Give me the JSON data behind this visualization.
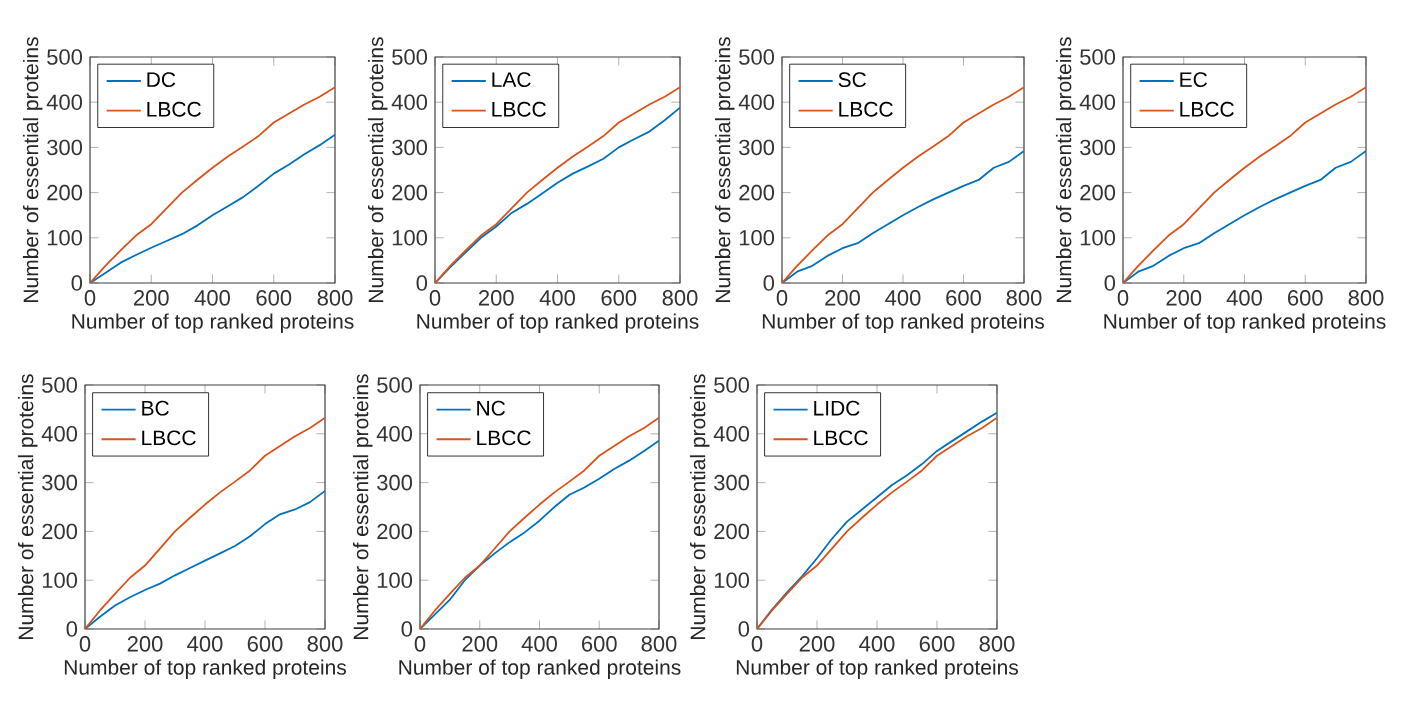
{
  "chart_data": [
    {
      "type": "line",
      "xlabel": "Number of top ranked proteins",
      "ylabel": "Number of essential proteins",
      "x": [
        0,
        50,
        100,
        150,
        200,
        250,
        300,
        350,
        400,
        450,
        500,
        550,
        600,
        650,
        700,
        750,
        800
      ],
      "xlim": [
        0,
        800
      ],
      "ylim": [
        0,
        500
      ],
      "xticks": [
        0,
        200,
        400,
        600,
        800
      ],
      "yticks": [
        0,
        100,
        200,
        300,
        400,
        500
      ],
      "legend": "top left",
      "marker": "none",
      "line_style": "solid",
      "series": [
        {
          "name": "DC",
          "color": "#0072bd",
          "values": [
            0,
            22,
            45,
            62,
            78,
            93,
            108,
            127,
            150,
            170,
            190,
            215,
            242,
            262,
            285,
            305,
            328
          ]
        },
        {
          "name": "LBCC",
          "color": "#d95319",
          "values": [
            0,
            38,
            72,
            105,
            130,
            165,
            200,
            228,
            255,
            280,
            302,
            325,
            355,
            375,
            395,
            412,
            433
          ]
        }
      ]
    },
    {
      "type": "line",
      "xlabel": "Number of top ranked proteins",
      "ylabel": "Number of essential proteins",
      "x": [
        0,
        50,
        100,
        150,
        200,
        250,
        300,
        350,
        400,
        450,
        500,
        550,
        600,
        650,
        700,
        750,
        800
      ],
      "xlim": [
        0,
        800
      ],
      "ylim": [
        0,
        500
      ],
      "xticks": [
        0,
        200,
        400,
        600,
        800
      ],
      "yticks": [
        0,
        100,
        200,
        300,
        400,
        500
      ],
      "legend": "top left",
      "marker": "none",
      "line_style": "solid",
      "series": [
        {
          "name": "LAC",
          "color": "#0072bd",
          "values": [
            0,
            35,
            68,
            100,
            125,
            155,
            175,
            198,
            222,
            242,
            258,
            275,
            300,
            318,
            335,
            360,
            388
          ]
        },
        {
          "name": "LBCC",
          "color": "#d95319",
          "values": [
            0,
            38,
            72,
            105,
            130,
            165,
            200,
            228,
            255,
            280,
            302,
            325,
            355,
            375,
            395,
            412,
            433
          ]
        }
      ]
    },
    {
      "type": "line",
      "xlabel": "Number of top ranked proteins",
      "ylabel": "Number of essential proteins",
      "x": [
        0,
        50,
        100,
        150,
        200,
        250,
        300,
        350,
        400,
        450,
        500,
        550,
        600,
        650,
        700,
        750,
        800
      ],
      "xlim": [
        0,
        800
      ],
      "ylim": [
        0,
        500
      ],
      "xticks": [
        0,
        200,
        400,
        600,
        800
      ],
      "yticks": [
        0,
        100,
        200,
        300,
        400,
        500
      ],
      "legend": "top left",
      "marker": "none",
      "line_style": "solid",
      "series": [
        {
          "name": "SC",
          "color": "#0072bd",
          "values": [
            0,
            25,
            38,
            60,
            77,
            88,
            110,
            130,
            150,
            168,
            185,
            200,
            215,
            228,
            255,
            268,
            292
          ]
        },
        {
          "name": "LBCC",
          "color": "#d95319",
          "values": [
            0,
            38,
            72,
            105,
            130,
            165,
            200,
            228,
            255,
            280,
            302,
            325,
            355,
            375,
            395,
            412,
            433
          ]
        }
      ]
    },
    {
      "type": "line",
      "xlabel": "Number of top ranked proteins",
      "ylabel": "Number of essential proteins",
      "x": [
        0,
        50,
        100,
        150,
        200,
        250,
        300,
        350,
        400,
        450,
        500,
        550,
        600,
        650,
        700,
        750,
        800
      ],
      "xlim": [
        0,
        800
      ],
      "ylim": [
        0,
        500
      ],
      "xticks": [
        0,
        200,
        400,
        600,
        800
      ],
      "yticks": [
        0,
        100,
        200,
        300,
        400,
        500
      ],
      "legend": "top left",
      "marker": "none",
      "line_style": "solid",
      "series": [
        {
          "name": "EC",
          "color": "#0072bd",
          "values": [
            0,
            25,
            38,
            60,
            77,
            88,
            110,
            130,
            150,
            168,
            185,
            200,
            215,
            228,
            255,
            268,
            292
          ]
        },
        {
          "name": "LBCC",
          "color": "#d95319",
          "values": [
            0,
            38,
            72,
            105,
            130,
            165,
            200,
            228,
            255,
            280,
            302,
            325,
            355,
            375,
            395,
            412,
            433
          ]
        }
      ]
    },
    {
      "type": "line",
      "xlabel": "Number of top ranked proteins",
      "ylabel": "Number of essential proteins",
      "x": [
        0,
        50,
        100,
        150,
        200,
        250,
        300,
        350,
        400,
        450,
        500,
        550,
        600,
        650,
        700,
        750,
        800
      ],
      "xlim": [
        0,
        800
      ],
      "ylim": [
        0,
        500
      ],
      "xticks": [
        0,
        200,
        400,
        600,
        800
      ],
      "yticks": [
        0,
        100,
        200,
        300,
        400,
        500
      ],
      "legend": "top left",
      "marker": "none",
      "line_style": "solid",
      "series": [
        {
          "name": "BC",
          "color": "#0072bd",
          "values": [
            0,
            25,
            48,
            65,
            80,
            93,
            110,
            125,
            140,
            155,
            170,
            190,
            215,
            235,
            245,
            260,
            283
          ]
        },
        {
          "name": "LBCC",
          "color": "#d95319",
          "values": [
            0,
            38,
            72,
            105,
            130,
            165,
            200,
            228,
            255,
            280,
            302,
            325,
            355,
            375,
            395,
            412,
            433
          ]
        }
      ]
    },
    {
      "type": "line",
      "xlabel": "Number of top ranked proteins",
      "ylabel": "Number of essential proteins",
      "x": [
        0,
        50,
        100,
        150,
        200,
        250,
        300,
        350,
        400,
        450,
        500,
        550,
        600,
        650,
        700,
        750,
        800
      ],
      "xlim": [
        0,
        800
      ],
      "ylim": [
        0,
        500
      ],
      "xticks": [
        0,
        200,
        400,
        600,
        800
      ],
      "yticks": [
        0,
        100,
        200,
        300,
        400,
        500
      ],
      "legend": "top left",
      "marker": "none",
      "line_style": "solid",
      "series": [
        {
          "name": "NC",
          "color": "#0072bd",
          "values": [
            0,
            30,
            60,
            100,
            130,
            155,
            178,
            198,
            222,
            250,
            275,
            290,
            308,
            328,
            345,
            365,
            386
          ]
        },
        {
          "name": "LBCC",
          "color": "#d95319",
          "values": [
            0,
            38,
            72,
            105,
            130,
            165,
            200,
            228,
            255,
            280,
            302,
            325,
            355,
            375,
            395,
            412,
            433
          ]
        }
      ]
    },
    {
      "type": "line",
      "xlabel": "Number of top ranked proteins",
      "ylabel": "Number of essential proteins",
      "x": [
        0,
        50,
        100,
        150,
        200,
        250,
        300,
        350,
        400,
        450,
        500,
        550,
        600,
        650,
        700,
        750,
        800
      ],
      "xlim": [
        0,
        800
      ],
      "ylim": [
        0,
        500
      ],
      "xticks": [
        0,
        200,
        400,
        600,
        800
      ],
      "yticks": [
        0,
        100,
        200,
        300,
        400,
        500
      ],
      "legend": "top left",
      "marker": "none",
      "line_style": "solid",
      "series": [
        {
          "name": "LIDC",
          "color": "#0072bd",
          "values": [
            0,
            40,
            75,
            108,
            145,
            185,
            220,
            245,
            270,
            295,
            315,
            338,
            365,
            385,
            405,
            425,
            443
          ]
        },
        {
          "name": "LBCC",
          "color": "#d95319",
          "values": [
            0,
            38,
            72,
            105,
            130,
            165,
            200,
            228,
            255,
            280,
            302,
            325,
            355,
            375,
            395,
            412,
            433
          ]
        }
      ]
    }
  ]
}
